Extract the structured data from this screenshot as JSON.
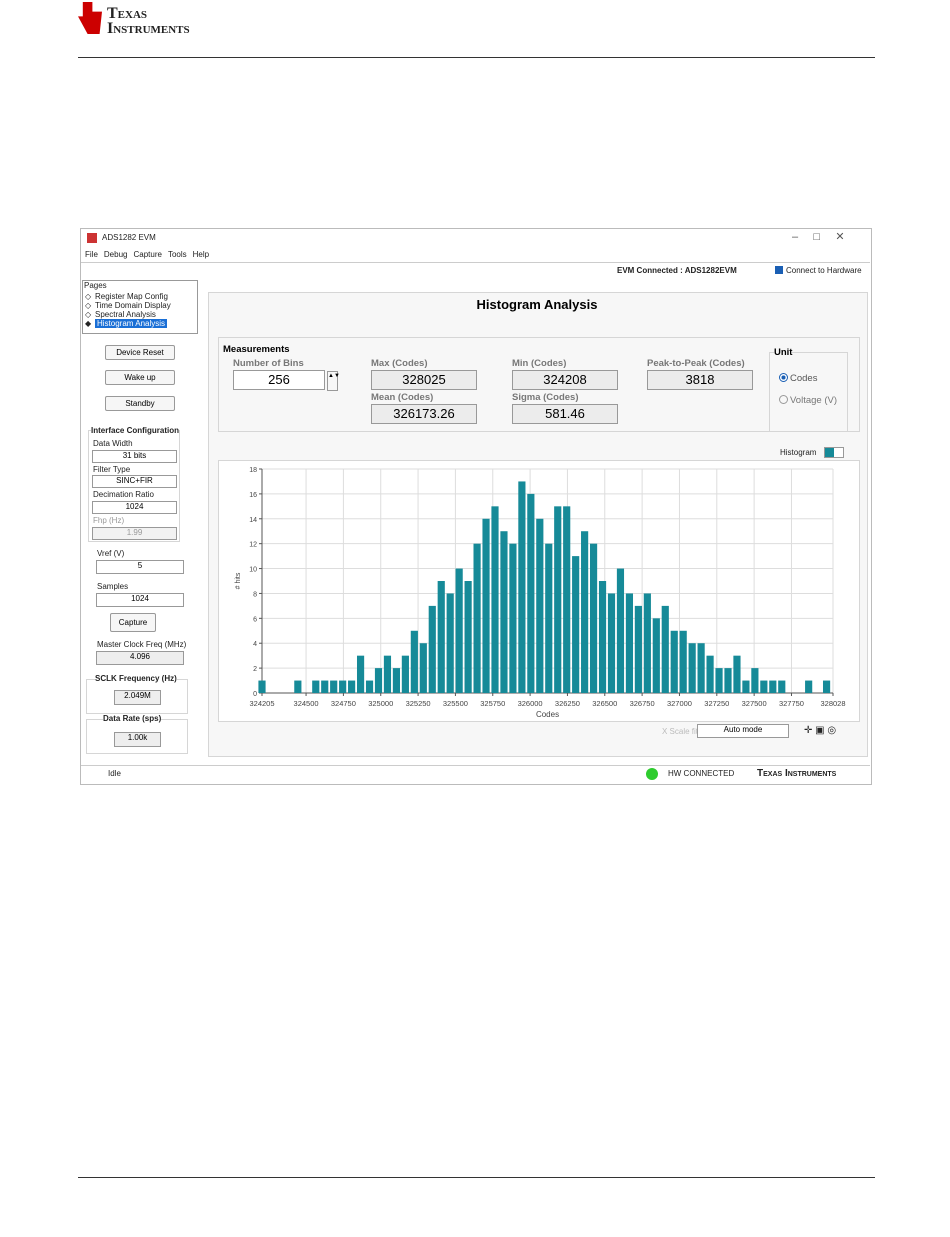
{
  "header": {
    "brand_line1": "Texas",
    "brand_line2": "Instruments"
  },
  "window": {
    "title": "ADS1282 EVM",
    "menu": [
      "File",
      "Debug",
      "Capture",
      "Tools",
      "Help"
    ],
    "connection_status": "EVM Connected : ADS1282EVM",
    "connect_checkbox": "Connect to Hardware",
    "pages_label": "Pages",
    "pages": [
      "Register Map Config",
      "Time Domain Display",
      "Spectral Analysis",
      "Histogram Analysis"
    ],
    "buttons": [
      "Device Reset",
      "Wake up",
      "Standby"
    ],
    "interface": {
      "title": "Interface Configuration",
      "data_width_label": "Data Width",
      "data_width": "31 bits",
      "filter_type_label": "Filter Type",
      "filter_type": "SINC+FIR",
      "decimation_label": "Decimation Ratio",
      "decimation": 1024,
      "fhp_label": "Fhp (Hz)",
      "fhp": 1.99
    },
    "vref_label": "Vref (V)",
    "vref": 5,
    "samples_label": "Samples",
    "samples": 1024,
    "capture_button": "Capture",
    "mclk_label": "Master Clock Freq (MHz)",
    "mclk": 4.096,
    "sclk_label": "SCLK Frequency (Hz)",
    "sclk": "2.049M",
    "data_rate_label": "Data Rate (sps)",
    "data_rate": "1.00k",
    "status": "Idle",
    "hw_status": "HW CONNECTED",
    "footer_brand": "Texas Instruments"
  },
  "panel": {
    "title": "Histogram Analysis",
    "measurements_title": "Measurements",
    "fields": [
      {
        "label": "Number of Bins",
        "value": 256
      },
      {
        "label": "Max (Codes)",
        "value": 328025
      },
      {
        "label": "Min (Codes)",
        "value": 324208
      },
      {
        "label": "Peak-to-Peak (Codes)",
        "value": 3818
      },
      {
        "label": "Mean (Codes)",
        "value": 326173.26
      },
      {
        "label": "Sigma (Codes)",
        "value": 581.46
      }
    ],
    "unit_title": "Unit",
    "unit_options": [
      "Codes",
      "Voltage (V)"
    ],
    "legend_label": "Histogram",
    "xscale_label": "X Scale fit",
    "xscale_mode": "Auto mode"
  },
  "chart_data": {
    "type": "bar",
    "color": "#168a98",
    "x": [
      324205,
      324265,
      324325,
      324385,
      324445,
      324505,
      324565,
      324625,
      324685,
      324745,
      324805,
      324865,
      324925,
      324985,
      325045,
      325105,
      325165,
      325225,
      325285,
      325345,
      325405,
      325465,
      325525,
      325585,
      325645,
      325705,
      325765,
      325825,
      325885,
      325945,
      326005,
      326065,
      326125,
      326185,
      326245,
      326305,
      326365,
      326425,
      326485,
      326545,
      326605,
      326665,
      326725,
      326785,
      326845,
      326905,
      326965,
      327025,
      327085,
      327145,
      327205,
      327265,
      327325,
      327385,
      327445,
      327505,
      327565,
      327625,
      327685,
      327745,
      327805,
      327865,
      327925,
      327985
    ],
    "values": [
      1,
      0,
      0,
      0,
      1,
      0,
      1,
      1,
      1,
      1,
      1,
      3,
      1,
      2,
      3,
      2,
      3,
      5,
      4,
      7,
      9,
      8,
      10,
      9,
      12,
      14,
      15,
      13,
      12,
      17,
      16,
      14,
      12,
      15,
      15,
      11,
      13,
      12,
      9,
      8,
      10,
      8,
      7,
      8,
      6,
      7,
      5,
      5,
      4,
      4,
      3,
      2,
      2,
      3,
      1,
      2,
      1,
      1,
      1,
      0,
      0,
      1,
      0,
      1
    ],
    "xlim": [
      324205,
      328028
    ],
    "xticks": [
      324205,
      324500,
      324750,
      325000,
      325250,
      325500,
      325750,
      326000,
      326250,
      326500,
      326750,
      327000,
      327250,
      327500,
      327750,
      328028
    ],
    "ylim": [
      0,
      18
    ],
    "yticks": [
      0,
      2,
      4,
      6,
      8,
      10,
      12,
      14,
      16,
      18
    ],
    "xlabel": "Codes",
    "ylabel": "# hits",
    "grid": true
  }
}
